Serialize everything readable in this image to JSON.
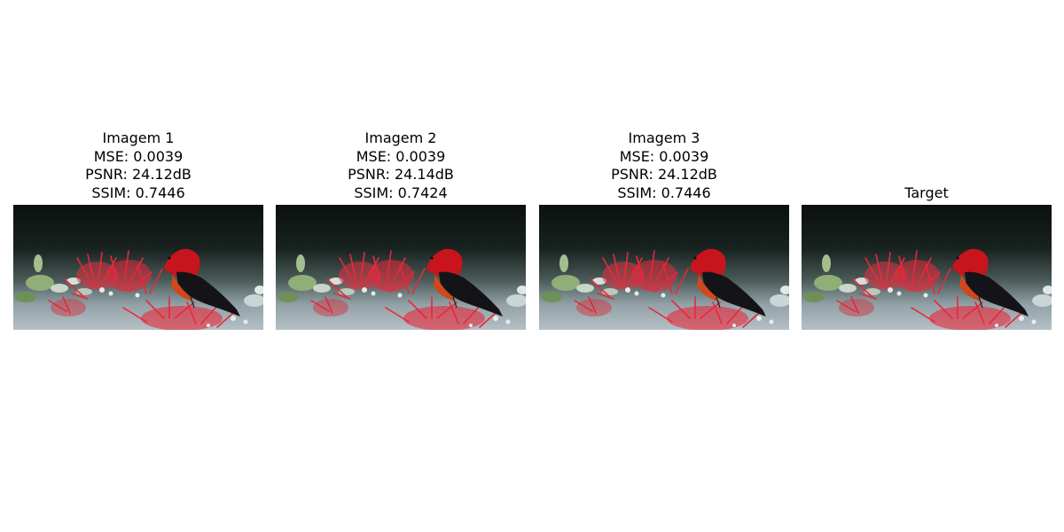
{
  "panels": [
    {
      "title": "Imagem 1",
      "mse": "MSE: 0.0039",
      "psnr": "PSNR: 24.12dB",
      "ssim": "SSIM: 0.7446",
      "image": "bird-on-red-flowers-reconstruction"
    },
    {
      "title": "Imagem 2",
      "mse": "MSE: 0.0039",
      "psnr": "PSNR: 24.14dB",
      "ssim": "SSIM: 0.7424",
      "image": "bird-on-red-flowers-reconstruction"
    },
    {
      "title": "Imagem 3",
      "mse": "MSE: 0.0039",
      "psnr": "PSNR: 24.12dB",
      "ssim": "SSIM: 0.7446",
      "image": "bird-on-red-flowers-reconstruction"
    },
    {
      "title": "Target",
      "image": "bird-on-red-flowers-original"
    }
  ],
  "colors": {
    "background_dark": "#0d1412",
    "background_mid": "#3a4a48",
    "background_light": "#a9b6bd",
    "flower_red": "#e8283a",
    "bird_head_red": "#c8141c",
    "bird_body_black": "#141418",
    "leaf_green": "#8fae78"
  }
}
